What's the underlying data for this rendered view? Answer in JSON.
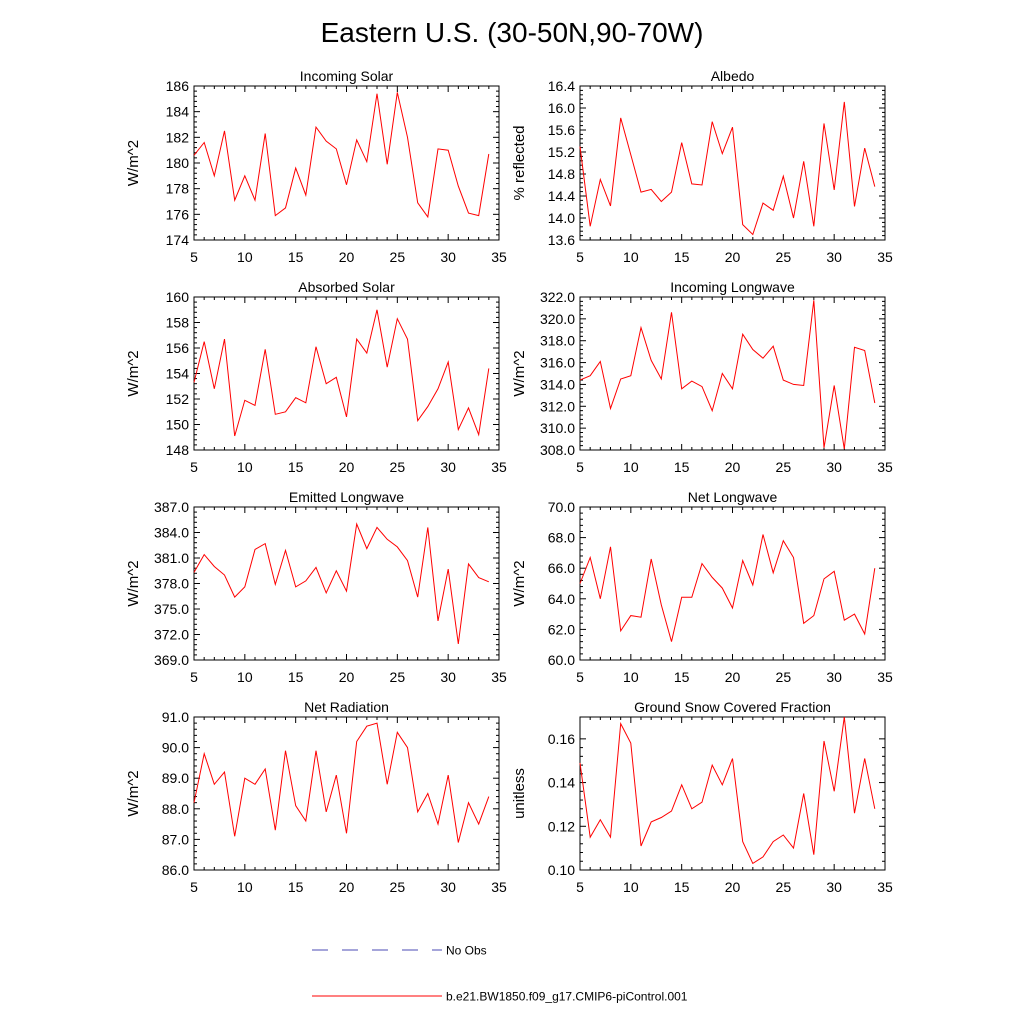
{
  "title": "Eastern U.S. (30-50N,90-70W)",
  "legend": {
    "obs_label": "No Obs",
    "obs_color": "#4b4bb4",
    "model_label": "b.e21.BW1850.f09_g17.CMIP6-piControl.001",
    "model_color": "#ff0000"
  },
  "chart_data": [
    {
      "type": "line",
      "title": "Incoming Solar",
      "xlabel": "",
      "ylabel": "W/m^2",
      "xlim": [
        5,
        35
      ],
      "ylim": [
        174,
        186
      ],
      "xticks": [
        5,
        10,
        15,
        20,
        25,
        30,
        35
      ],
      "yticks": [
        174,
        176,
        178,
        180,
        182,
        184,
        186
      ],
      "ytick_labels": [
        "174",
        "176",
        "178",
        "180",
        "182",
        "184",
        "186"
      ],
      "x": [
        5,
        6,
        7,
        8,
        9,
        10,
        11,
        12,
        13,
        14,
        15,
        16,
        17,
        18,
        19,
        20,
        21,
        22,
        23,
        24,
        25,
        26,
        27,
        28,
        29,
        30,
        31,
        32,
        33,
        34
      ],
      "series": [
        {
          "name": "b.e21.BW1850.f09_g17.CMIP6-piControl.001",
          "color": "#ff0000",
          "values": [
            180.6,
            181.6,
            179.0,
            182.5,
            177.1,
            179.0,
            177.1,
            182.3,
            175.9,
            176.5,
            179.6,
            177.5,
            182.8,
            181.7,
            181.1,
            178.3,
            181.8,
            180.1,
            185.4,
            179.9,
            185.5,
            182.0,
            176.9,
            175.8,
            181.1,
            181.0,
            178.2,
            176.1,
            175.9,
            180.7
          ]
        }
      ]
    },
    {
      "type": "line",
      "title": "Albedo",
      "xlabel": "",
      "ylabel": "% reflected",
      "xlim": [
        5,
        35
      ],
      "ylim": [
        13.6,
        16.4
      ],
      "xticks": [
        5,
        10,
        15,
        20,
        25,
        30,
        35
      ],
      "yticks": [
        13.6,
        14.0,
        14.4,
        14.8,
        15.2,
        15.6,
        16.0,
        16.4
      ],
      "ytick_labels": [
        "13.6",
        "14.0",
        "14.4",
        "14.8",
        "15.2",
        "15.6",
        "16.0",
        "16.4"
      ],
      "x": [
        5,
        6,
        7,
        8,
        9,
        10,
        11,
        12,
        13,
        14,
        15,
        16,
        17,
        18,
        19,
        20,
        21,
        22,
        23,
        24,
        25,
        26,
        27,
        28,
        29,
        30,
        31,
        32,
        33,
        34
      ],
      "series": [
        {
          "name": "b.e21.BW1850.f09_g17.CMIP6-piControl.001",
          "color": "#ff0000",
          "values": [
            15.3,
            13.85,
            14.7,
            14.22,
            15.82,
            15.15,
            14.47,
            14.52,
            14.3,
            14.47,
            15.37,
            14.62,
            14.6,
            15.75,
            15.17,
            15.65,
            13.88,
            13.7,
            14.27,
            14.14,
            14.76,
            14.0,
            15.03,
            13.85,
            15.72,
            14.51,
            16.11,
            14.21,
            15.27,
            14.57
          ]
        }
      ]
    },
    {
      "type": "line",
      "title": "Absorbed Solar",
      "xlabel": "",
      "ylabel": "W/m^2",
      "xlim": [
        5,
        35
      ],
      "ylim": [
        148,
        160
      ],
      "xticks": [
        5,
        10,
        15,
        20,
        25,
        30,
        35
      ],
      "yticks": [
        148,
        150,
        152,
        154,
        156,
        158,
        160
      ],
      "ytick_labels": [
        "148",
        "150",
        "152",
        "154",
        "156",
        "158",
        "160"
      ],
      "x": [
        5,
        6,
        7,
        8,
        9,
        10,
        11,
        12,
        13,
        14,
        15,
        16,
        17,
        18,
        19,
        20,
        21,
        22,
        23,
        24,
        25,
        26,
        27,
        28,
        29,
        30,
        31,
        32,
        33,
        34
      ],
      "series": [
        {
          "name": "b.e21.BW1850.f09_g17.CMIP6-piControl.001",
          "color": "#ff0000",
          "values": [
            153.3,
            156.5,
            152.8,
            156.7,
            149.1,
            151.9,
            151.5,
            155.9,
            150.8,
            151.0,
            152.1,
            151.7,
            156.1,
            153.2,
            153.7,
            150.6,
            156.7,
            155.6,
            159.0,
            154.5,
            158.3,
            156.7,
            150.3,
            151.4,
            152.8,
            154.9,
            149.6,
            151.3,
            149.2,
            154.4
          ]
        }
      ]
    },
    {
      "type": "line",
      "title": "Incoming Longwave",
      "xlabel": "",
      "ylabel": "W/m^2",
      "xlim": [
        5,
        35
      ],
      "ylim": [
        308,
        322
      ],
      "xticks": [
        5,
        10,
        15,
        20,
        25,
        30,
        35
      ],
      "yticks": [
        308,
        310,
        312,
        314,
        316,
        318,
        320,
        322
      ],
      "ytick_labels": [
        "308.0",
        "310.0",
        "312.0",
        "314.0",
        "316.0",
        "318.0",
        "320.0",
        "322.0"
      ],
      "x": [
        5,
        6,
        7,
        8,
        9,
        10,
        11,
        12,
        13,
        14,
        15,
        16,
        17,
        18,
        19,
        20,
        21,
        22,
        23,
        24,
        25,
        26,
        27,
        28,
        29,
        30,
        31,
        32,
        33,
        34
      ],
      "series": [
        {
          "name": "b.e21.BW1850.f09_g17.CMIP6-piControl.001",
          "color": "#ff0000",
          "values": [
            314.4,
            314.8,
            316.1,
            311.8,
            314.5,
            314.8,
            319.2,
            316.2,
            314.5,
            320.6,
            313.6,
            314.3,
            313.8,
            311.6,
            315.0,
            313.6,
            318.6,
            317.2,
            316.4,
            317.5,
            314.4,
            314.0,
            313.9,
            321.7,
            308.2,
            313.9,
            308.1,
            317.4,
            317.1,
            312.3
          ]
        }
      ]
    },
    {
      "type": "line",
      "title": "Emitted Longwave",
      "xlabel": "",
      "ylabel": "W/m^2",
      "xlim": [
        5,
        35
      ],
      "ylim": [
        369,
        387
      ],
      "xticks": [
        5,
        10,
        15,
        20,
        25,
        30,
        35
      ],
      "yticks": [
        369,
        372,
        375,
        378,
        381,
        384,
        387
      ],
      "ytick_labels": [
        "369.0",
        "372.0",
        "375.0",
        "378.0",
        "381.0",
        "384.0",
        "387.0"
      ],
      "x": [
        5,
        6,
        7,
        8,
        9,
        10,
        11,
        12,
        13,
        14,
        15,
        16,
        17,
        18,
        19,
        20,
        21,
        22,
        23,
        24,
        25,
        26,
        27,
        28,
        29,
        30,
        31,
        32,
        33,
        34
      ],
      "series": [
        {
          "name": "b.e21.BW1850.f09_g17.CMIP6-piControl.001",
          "color": "#ff0000",
          "values": [
            379.3,
            381.4,
            380.0,
            379.0,
            376.4,
            377.6,
            382.0,
            382.7,
            377.9,
            381.9,
            377.6,
            378.3,
            379.9,
            376.9,
            379.5,
            377.1,
            385.0,
            382.1,
            384.6,
            383.2,
            382.3,
            380.7,
            376.4,
            384.6,
            373.6,
            379.7,
            370.9,
            380.3,
            378.7,
            378.2
          ]
        }
      ]
    },
    {
      "type": "line",
      "title": "Net Longwave",
      "xlabel": "",
      "ylabel": "W/m^2",
      "xlim": [
        5,
        35
      ],
      "ylim": [
        60,
        70
      ],
      "xticks": [
        5,
        10,
        15,
        20,
        25,
        30,
        35
      ],
      "yticks": [
        60,
        62,
        64,
        66,
        68,
        70
      ],
      "ytick_labels": [
        "60.0",
        "62.0",
        "64.0",
        "66.0",
        "68.0",
        "70.0"
      ],
      "x": [
        5,
        6,
        7,
        8,
        9,
        10,
        11,
        12,
        13,
        14,
        15,
        16,
        17,
        18,
        19,
        20,
        21,
        22,
        23,
        24,
        25,
        26,
        27,
        28,
        29,
        30,
        31,
        32,
        33,
        34
      ],
      "series": [
        {
          "name": "b.e21.BW1850.f09_g17.CMIP6-piControl.001",
          "color": "#ff0000",
          "values": [
            65.0,
            66.7,
            64.0,
            67.4,
            61.9,
            62.9,
            62.8,
            66.6,
            63.6,
            61.2,
            64.1,
            64.1,
            66.3,
            65.4,
            64.7,
            63.4,
            66.5,
            64.9,
            68.2,
            65.7,
            67.8,
            66.7,
            62.4,
            62.9,
            65.3,
            65.8,
            62.6,
            63.0,
            61.7,
            66.0
          ]
        }
      ]
    },
    {
      "type": "line",
      "title": "Net Radiation",
      "xlabel": "",
      "ylabel": "W/m^2",
      "xlim": [
        5,
        35
      ],
      "ylim": [
        86,
        91
      ],
      "xticks": [
        5,
        10,
        15,
        20,
        25,
        30,
        35
      ],
      "yticks": [
        86,
        87,
        88,
        89,
        90,
        91
      ],
      "ytick_labels": [
        "86.0",
        "87.0",
        "88.0",
        "89.0",
        "90.0",
        "91.0"
      ],
      "x": [
        5,
        6,
        7,
        8,
        9,
        10,
        11,
        12,
        13,
        14,
        15,
        16,
        17,
        18,
        19,
        20,
        21,
        22,
        23,
        24,
        25,
        26,
        27,
        28,
        29,
        30,
        31,
        32,
        33,
        34
      ],
      "series": [
        {
          "name": "b.e21.BW1850.f09_g17.CMIP6-piControl.001",
          "color": "#ff0000",
          "values": [
            88.2,
            89.8,
            88.8,
            89.2,
            87.1,
            89.0,
            88.8,
            89.3,
            87.3,
            89.9,
            88.1,
            87.6,
            89.9,
            87.9,
            89.1,
            87.2,
            90.2,
            90.7,
            90.8,
            88.8,
            90.5,
            90.0,
            87.9,
            88.5,
            87.5,
            89.1,
            86.9,
            88.2,
            87.5,
            88.4
          ]
        }
      ]
    },
    {
      "type": "line",
      "title": "Ground Snow Covered Fraction",
      "xlabel": "",
      "ylabel": "unitless",
      "xlim": [
        5,
        35
      ],
      "ylim": [
        0.1,
        0.17
      ],
      "xticks": [
        5,
        10,
        15,
        20,
        25,
        30,
        35
      ],
      "yticks": [
        0.1,
        0.12,
        0.14,
        0.16
      ],
      "ytick_labels": [
        "0.10",
        "0.12",
        "0.14",
        "0.16"
      ],
      "x": [
        5,
        6,
        7,
        8,
        9,
        10,
        11,
        12,
        13,
        14,
        15,
        16,
        17,
        18,
        19,
        20,
        21,
        22,
        23,
        24,
        25,
        26,
        27,
        28,
        29,
        30,
        31,
        32,
        33,
        34
      ],
      "series": [
        {
          "name": "b.e21.BW1850.f09_g17.CMIP6-piControl.001",
          "color": "#ff0000",
          "values": [
            0.149,
            0.115,
            0.123,
            0.115,
            0.167,
            0.158,
            0.111,
            0.122,
            0.124,
            0.127,
            0.139,
            0.128,
            0.131,
            0.148,
            0.139,
            0.151,
            0.113,
            0.103,
            0.106,
            0.113,
            0.116,
            0.11,
            0.135,
            0.107,
            0.159,
            0.136,
            0.17,
            0.126,
            0.151,
            0.128
          ]
        }
      ]
    }
  ]
}
